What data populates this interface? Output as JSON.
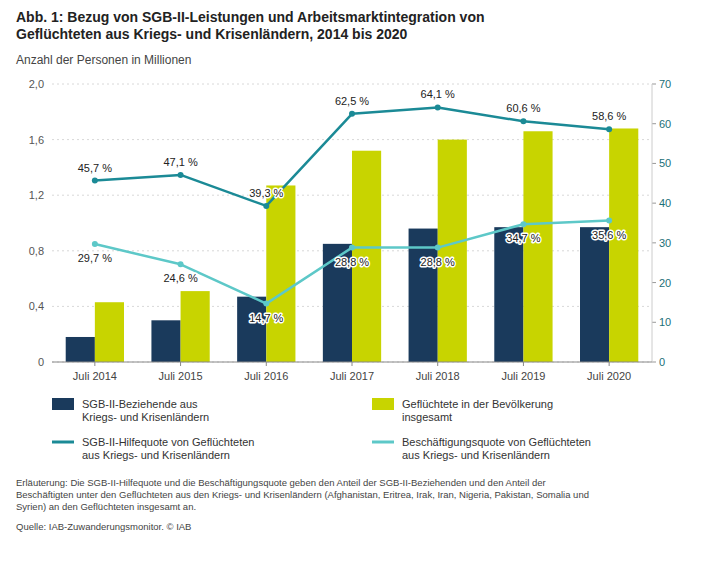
{
  "chart_data": {
    "type": "bar",
    "title": "Abb. 1: Bezug von SGB-II-Leistungen und Arbeitsmarktintegration von\nGeflüchteten aus Kriegs- und Krisenländern, 2014 bis 2020",
    "ylabel": "Anzahl der Personen in Millionen",
    "categories": [
      "Juli 2014",
      "Juli 2015",
      "Juli 2016",
      "Juli 2017",
      "Juli 2018",
      "Juli 2019",
      "Juli 2020"
    ],
    "series": [
      {
        "name": "SGB-II-Beziehende aus\nKriegs- und Krisenländern",
        "type": "bar",
        "color": "#1a3a5c",
        "values": [
          0.18,
          0.3,
          0.47,
          0.85,
          0.96,
          0.97,
          0.97
        ]
      },
      {
        "name": "Geflüchtete in der Bevölkerung\ninsgesamt",
        "type": "bar",
        "color": "#c8d400",
        "values": [
          0.43,
          0.51,
          1.27,
          1.52,
          1.6,
          1.66,
          1.68
        ]
      },
      {
        "name": "SGB-II-Hilfequote von Geflüchteten\naus Kriegs- und Krisenländern",
        "type": "line",
        "axis": "y2",
        "color": "#1b8a96",
        "data_labels": true,
        "values": [
          45.7,
          47.1,
          39.3,
          62.5,
          64.1,
          60.6,
          58.6
        ],
        "value_labels": [
          "45,7 %",
          "47,1 %",
          "39,3 %",
          "62,5 %",
          "64,1 %",
          "60,6 %",
          "58,6 %"
        ]
      },
      {
        "name": "Beschäftigungsquote von Geflüchteten\naus Kriegs- und Krisenländern",
        "type": "line",
        "axis": "y2",
        "color": "#5dc8c8",
        "data_labels": true,
        "values": [
          29.7,
          24.6,
          14.7,
          28.8,
          28.8,
          34.7,
          35.6
        ],
        "value_labels": [
          "29,7 %",
          "24,6 %",
          "14,7 %",
          "28,8 %",
          "28,8 %",
          "34,7 %",
          "35,6 %"
        ]
      }
    ],
    "ylim": [
      0,
      2.0
    ],
    "yticks": [
      0,
      {
        "value": 0.4,
        "label": "0,4"
      },
      {
        "value": 0.8,
        "label": "0,8"
      },
      {
        "value": 1.2,
        "label": "1,2"
      },
      {
        "value": 1.6,
        "label": "1,6"
      },
      {
        "value": 2.0,
        "label": "2,0"
      }
    ],
    "y2lim": [
      0,
      70
    ],
    "y2ticks": [
      0,
      10,
      20,
      30,
      40,
      50,
      60,
      70
    ],
    "grid": true,
    "legend": "bottom",
    "annotations": [
      "Erläuterung: Die SGB-II-Hilfequote und die Beschäftigungsquote geben den Anteil der SGB-II-Beziehenden und den Anteil der\nBeschäftigten unter den Geflüchteten aus den Kriegs- und Krisenländern (Afghanistan, Eritrea, Irak, Iran, Nigeria, Pakistan, Somalia und\nSyrien) an den Geflüchteten insgesamt an.",
      "Quelle: IAB-Zuwanderungsmonitor. © IAB"
    ]
  }
}
